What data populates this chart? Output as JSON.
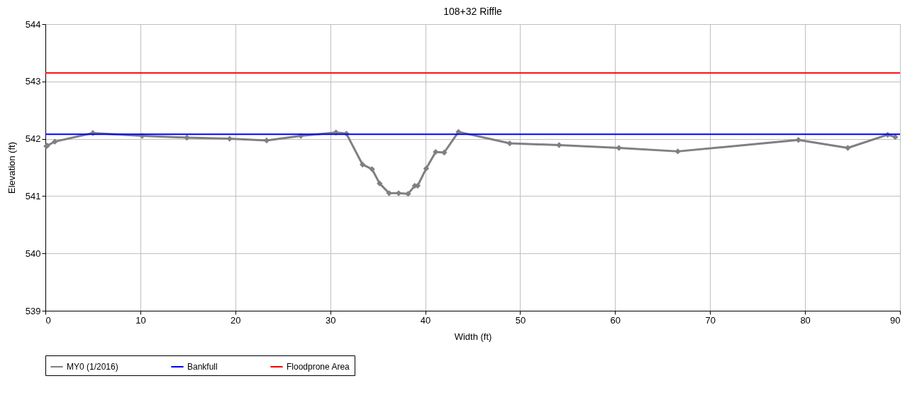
{
  "chart_data": {
    "type": "line",
    "title": "108+32 Riffle",
    "xlabel": "Width (ft)",
    "ylabel": "Elevation (ft)",
    "series": [
      {
        "name": "MY0 (1/2016)",
        "color": "#808080",
        "x": [
          0.1,
          0.2,
          1,
          5,
          10.2,
          14.9,
          19.4,
          23.3,
          26.9,
          30.6,
          31.7,
          33.4,
          34.4,
          35.2,
          36.2,
          37.2,
          38.2,
          38.9,
          39.2,
          40.1,
          41.1,
          42.0,
          43.5,
          48.9,
          54.1,
          60.4,
          66.6,
          79.3,
          84.5,
          88.7,
          89.5
        ],
        "values": [
          541.87,
          541.88,
          541.95,
          542.1,
          542.05,
          542.02,
          542.0,
          541.97,
          542.05,
          542.11,
          542.09,
          541.55,
          541.47,
          541.22,
          541.05,
          541.05,
          541.04,
          541.18,
          541.18,
          541.48,
          541.77,
          541.76,
          542.12,
          541.92,
          541.89,
          541.84,
          541.78,
          541.98,
          541.84,
          542.07,
          542.03
        ]
      }
    ],
    "ref_lines": [
      {
        "axis": "y",
        "value": 542.08,
        "label": "Bankfull",
        "color": "#0000ff"
      },
      {
        "axis": "y",
        "value": 543.15,
        "label": "Floodprone Area",
        "color": "#ff0000"
      }
    ],
    "xlim": [
      0,
      90
    ],
    "xticks": [
      0,
      10,
      20,
      30,
      40,
      50,
      60,
      70,
      80,
      90
    ],
    "ylim": [
      539,
      544
    ],
    "yticks": [
      539,
      540,
      541,
      542,
      543,
      544
    ],
    "grid": true,
    "legend": "bottom",
    "marker": "diamond",
    "line_style": "solid"
  }
}
